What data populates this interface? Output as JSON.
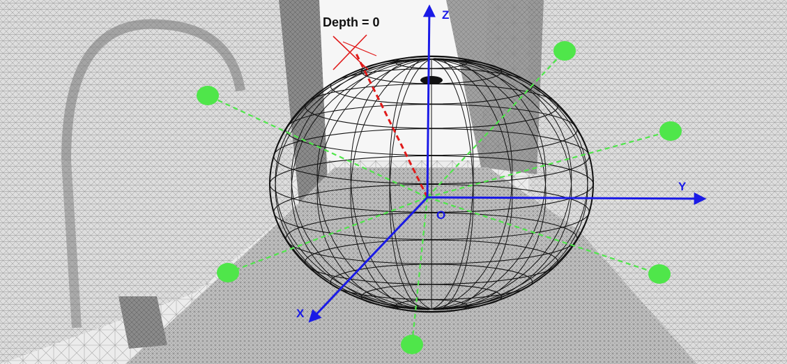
{
  "labels": {
    "depth": "Depth = 0",
    "axis_z": "Z",
    "axis_y": "Y",
    "axis_x": "X",
    "origin": "O"
  },
  "colors": {
    "axis": "#1a1ae6",
    "ray": "#4fe64a",
    "depth_ray": "#e01b1b",
    "sphere_mesh": "#111111",
    "label_dark": "#111111",
    "background_mesh": "#9a9a9a"
  },
  "scene": {
    "description_icons": [
      "room-mesh-background",
      "unit-sphere-wireframe",
      "sample-ray-endpoint"
    ]
  }
}
